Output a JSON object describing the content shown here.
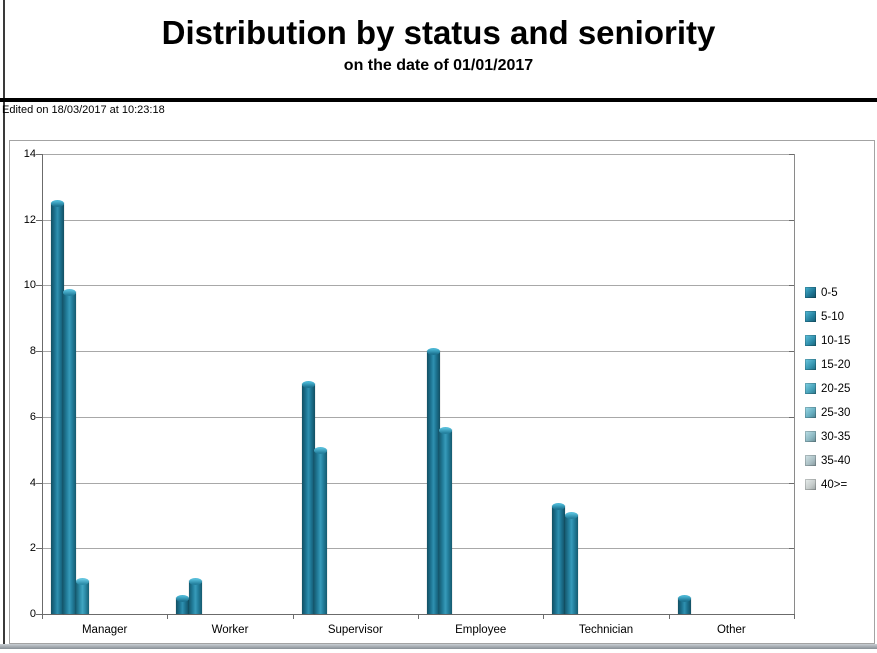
{
  "page": {
    "title": "Distribution by status and seniority",
    "subtitle": "on the date of 01/01/2017",
    "edited_note": "Edited on 18/03/2017 at 10:23:18"
  },
  "chart_data": {
    "type": "bar",
    "title": "Distribution by status and seniority",
    "subtitle": "on the date of 01/01/2017",
    "categories": [
      "Manager",
      "Worker",
      "Supervisor",
      "Employee",
      "Technician",
      "Other"
    ],
    "series": [
      {
        "name": "0-5",
        "values": [
          12.5,
          0.5,
          7,
          8,
          3.3,
          0.5
        ],
        "colors": {
          "dark": "#124f63",
          "mid": "#1d7492",
          "light": "#2f91b1",
          "cap": "#49b4d2"
        }
      },
      {
        "name": "5-10",
        "values": [
          9.8,
          1,
          5,
          5.6,
          3,
          0
        ],
        "colors": {
          "dark": "#155a6f",
          "mid": "#24809e",
          "light": "#379bba",
          "cap": "#55bcd8"
        }
      },
      {
        "name": "10-15",
        "values": [
          1,
          0,
          0,
          0,
          0,
          0
        ],
        "colors": {
          "dark": "#186175",
          "mid": "#2c8ca9",
          "light": "#41a6c2",
          "cap": "#63c4de"
        }
      },
      {
        "name": "15-20",
        "values": [
          0,
          0,
          0,
          0,
          0,
          0
        ],
        "colors": {
          "dark": "#1c6a7f",
          "mid": "#3595b0",
          "light": "#4fadc6",
          "cap": "#6fcbe2"
        }
      },
      {
        "name": "20-25",
        "values": [
          0,
          0,
          0,
          0,
          0,
          0
        ],
        "colors": {
          "dark": "#2d7487",
          "mid": "#45a1b9",
          "light": "#63b7cc",
          "cap": "#84d2e4"
        }
      },
      {
        "name": "25-30",
        "values": [
          0,
          0,
          0,
          0,
          0,
          0
        ],
        "colors": {
          "dark": "#4a7f8d",
          "mid": "#66adbf",
          "light": "#85c2d0",
          "cap": "#a0dbe8"
        }
      },
      {
        "name": "30-35",
        "values": [
          0,
          0,
          0,
          0,
          0,
          0
        ],
        "colors": {
          "dark": "#688a92",
          "mid": "#8bb7c1",
          "light": "#a5c8d0",
          "cap": "#bfe2e9"
        }
      },
      {
        "name": "35-40",
        "values": [
          0,
          0,
          0,
          0,
          0,
          0
        ],
        "colors": {
          "dark": "#84959a",
          "mid": "#a9bec3",
          "light": "#bdd0d4",
          "cap": "#d4e6e9"
        }
      },
      {
        "name": "40>=",
        "values": [
          0,
          0,
          0,
          0,
          0,
          0
        ],
        "colors": {
          "dark": "#9aa2a2",
          "mid": "#c5cbca",
          "light": "#d8dedd",
          "cap": "#e9efee"
        }
      }
    ],
    "ylim": [
      0,
      14
    ],
    "yticks": [
      0,
      2,
      4,
      6,
      8,
      10,
      12,
      14
    ],
    "xlabel": "",
    "ylabel": "",
    "grid": "horizontal",
    "legend_position": "right"
  }
}
